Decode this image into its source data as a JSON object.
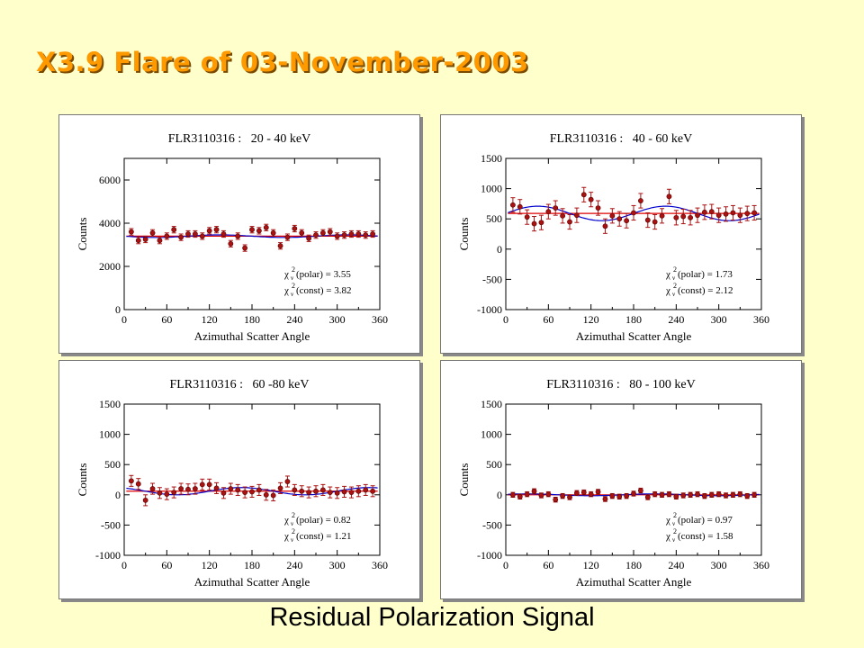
{
  "page": {
    "title": "X3.9 Flare of 03-November-2003",
    "footer": "Residual Polarization Signal"
  },
  "colors": {
    "background": "#ffffcc",
    "title": "#ff9900",
    "data": "#aa1111",
    "fit_polar": "#0000cc",
    "fit_const": "#dd0000"
  },
  "chart_data": [
    {
      "type": "scatter",
      "title": "FLR3110316 :   20 - 40 keV",
      "xlabel": "Azimuthal Scatter Angle",
      "ylabel": "Counts",
      "xlim": [
        0,
        360
      ],
      "ylim": [
        0,
        7000
      ],
      "xticks": [
        0,
        60,
        120,
        180,
        240,
        300,
        360
      ],
      "yticks": [
        0,
        2000,
        4000,
        6000
      ],
      "x": [
        10,
        20,
        30,
        40,
        50,
        60,
        70,
        80,
        90,
        100,
        110,
        120,
        130,
        140,
        150,
        160,
        170,
        180,
        190,
        200,
        210,
        220,
        230,
        240,
        250,
        260,
        270,
        280,
        290,
        300,
        310,
        320,
        330,
        340,
        350
      ],
      "series": [
        {
          "values": [
            3600,
            3200,
            3250,
            3550,
            3200,
            3400,
            3700,
            3350,
            3500,
            3500,
            3400,
            3650,
            3700,
            3500,
            3050,
            3400,
            2850,
            3700,
            3650,
            3800,
            3550,
            2950,
            3350,
            3750,
            3550,
            3300,
            3450,
            3550,
            3600,
            3400,
            3450,
            3500,
            3500,
            3450,
            3500
          ]
        }
      ],
      "errors": 150,
      "fits": {
        "const": 3400,
        "polar_amp": 60,
        "polar_phase": 135
      },
      "stats": [
        {
          "label": "(polar) = 3.55"
        },
        {
          "label": "(const) = 3.82"
        }
      ]
    },
    {
      "type": "scatter",
      "title": "FLR3110316 :   40 - 60 keV",
      "xlabel": "Azimuthal Scatter Angle",
      "ylabel": "Counts",
      "xlim": [
        0,
        360
      ],
      "ylim": [
        -1000,
        1500
      ],
      "xticks": [
        0,
        60,
        120,
        180,
        240,
        300,
        360
      ],
      "yticks": [
        -1000,
        -500,
        0,
        500,
        1000,
        1500
      ],
      "x": [
        10,
        20,
        30,
        40,
        50,
        60,
        70,
        80,
        90,
        100,
        110,
        120,
        130,
        140,
        150,
        160,
        170,
        180,
        190,
        200,
        210,
        220,
        230,
        240,
        250,
        260,
        270,
        280,
        290,
        300,
        310,
        320,
        330,
        340,
        350
      ],
      "series": [
        {
          "values": [
            730,
            700,
            530,
            420,
            440,
            620,
            680,
            550,
            450,
            560,
            900,
            820,
            680,
            380,
            550,
            500,
            470,
            600,
            800,
            480,
            450,
            550,
            870,
            520,
            540,
            520,
            560,
            610,
            620,
            560,
            580,
            600,
            560,
            590,
            600
          ]
        }
      ],
      "errors": 120,
      "fits": {
        "const": 590,
        "polar_amp": 120,
        "polar_phase": 45
      },
      "stats": [
        {
          "label": "(polar) = 1.73"
        },
        {
          "label": "(const) = 2.12"
        }
      ]
    },
    {
      "type": "scatter",
      "title": "FLR3110316 :   60 -80 keV",
      "xlabel": "Azimuthal Scatter Angle",
      "ylabel": "Counts",
      "xlim": [
        0,
        360
      ],
      "ylim": [
        -1000,
        1500
      ],
      "xticks": [
        0,
        60,
        120,
        180,
        240,
        300,
        360
      ],
      "yticks": [
        -1000,
        -500,
        0,
        500,
        1000,
        1500
      ],
      "x": [
        10,
        20,
        30,
        40,
        50,
        60,
        70,
        80,
        90,
        100,
        110,
        120,
        130,
        140,
        150,
        160,
        170,
        180,
        190,
        200,
        210,
        220,
        230,
        240,
        250,
        260,
        270,
        280,
        290,
        300,
        310,
        320,
        330,
        340,
        350
      ],
      "series": [
        {
          "values": [
            230,
            180,
            -90,
            100,
            30,
            10,
            40,
            100,
            90,
            100,
            170,
            170,
            110,
            30,
            100,
            80,
            40,
            50,
            80,
            0,
            -10,
            110,
            220,
            80,
            60,
            40,
            60,
            80,
            40,
            30,
            50,
            40,
            60,
            80,
            60
          ]
        }
      ],
      "errors": 90,
      "fits": {
        "const": 60,
        "polar_amp": 60,
        "polar_phase": 165
      },
      "stats": [
        {
          "label": "(polar) = 0.82"
        },
        {
          "label": "(const) = 1.21"
        }
      ]
    },
    {
      "type": "scatter",
      "title": "FLR3110316 :   80 - 100 keV",
      "xlabel": "Azimuthal Scatter Angle",
      "ylabel": "Counts",
      "xlim": [
        0,
        360
      ],
      "ylim": [
        -1000,
        1500
      ],
      "xticks": [
        0,
        60,
        120,
        180,
        240,
        300,
        360
      ],
      "yticks": [
        -1000,
        -500,
        0,
        500,
        1000,
        1500
      ],
      "x": [
        10,
        20,
        30,
        40,
        50,
        60,
        70,
        80,
        90,
        100,
        110,
        120,
        130,
        140,
        150,
        160,
        170,
        180,
        190,
        200,
        210,
        220,
        230,
        240,
        250,
        260,
        270,
        280,
        290,
        300,
        310,
        320,
        330,
        340,
        350
      ],
      "series": [
        {
          "values": [
            0,
            -30,
            10,
            60,
            -10,
            10,
            -80,
            -20,
            -40,
            30,
            40,
            10,
            50,
            -70,
            -20,
            -30,
            -20,
            20,
            70,
            -40,
            10,
            0,
            10,
            -30,
            -10,
            0,
            10,
            -20,
            0,
            10,
            -10,
            0,
            10,
            -20,
            0
          ]
        }
      ],
      "errors": 40,
      "fits": {
        "const": 0,
        "polar_amp": 15,
        "polar_phase": 30
      },
      "stats": [
        {
          "label": "(polar) = 0.97"
        },
        {
          "label": "(const) = 1.58"
        }
      ]
    }
  ]
}
